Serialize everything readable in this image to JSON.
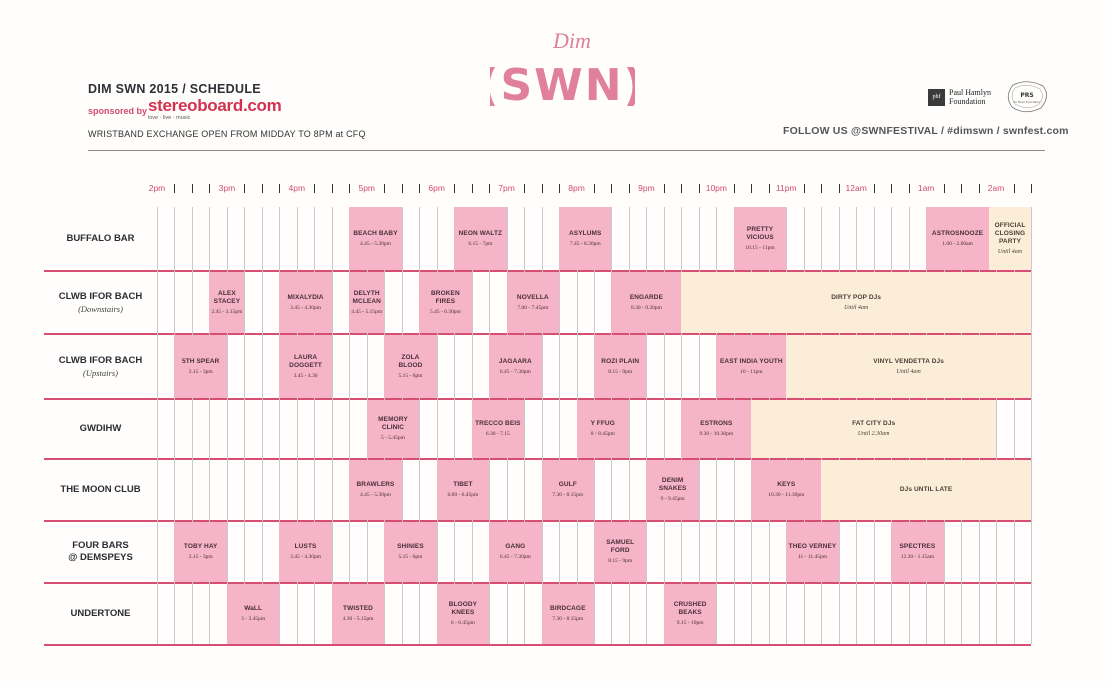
{
  "header": {
    "logo_top": "Dim",
    "logo_main": "(SWN)",
    "title": "DIM SWN 2015 / SCHEDULE",
    "sponsored_by": "sponsored by",
    "sponsor_name": "stereoboard.com",
    "sponsor_tagline": "love · live · music",
    "wristband": "WRISTBAND EXCHANGE OPEN FROM MIDDAY TO 8PM at CFQ",
    "follow": "FOLLOW US @SWNFESTIVAL / #dimswn / swnfest.com",
    "phf_mark": "phf",
    "phf_line1": "Paul Hamlyn",
    "phf_line2": "Foundation",
    "prs_mark": "PRS",
    "prs_sub": "for Music Foundation"
  },
  "colors": {
    "accent": "#d24b6e",
    "slot": "#f5b4c8",
    "dj": "#fcedd9",
    "rule": "#d64f72"
  },
  "hours": [
    "2pm",
    "3pm",
    "4pm",
    "5pm",
    "6pm",
    "7pm",
    "8pm",
    "9pm",
    "10pm",
    "11pm",
    "12am",
    "1am",
    "2am"
  ],
  "venues": [
    {
      "name": "BUFFALO BAR",
      "sub": ""
    },
    {
      "name": "CLWB IFOR BACH",
      "sub": "(Downstairs)"
    },
    {
      "name": "CLWB IFOR BACH",
      "sub": "(Upstairs)"
    },
    {
      "name": "GWDIHW",
      "sub": ""
    },
    {
      "name": "THE MOON CLUB",
      "sub": ""
    },
    {
      "name": "FOUR BARS\n@ DEMSPEYS",
      "sub": ""
    },
    {
      "name": "UNDERTONE",
      "sub": ""
    }
  ],
  "slots": [
    {
      "row": 0,
      "name": "BEACH BABY",
      "time": "4.45 - 5.30pm",
      "start": 16.75,
      "end": 17.5,
      "dj": false
    },
    {
      "row": 0,
      "name": "NEON WALTZ",
      "time": "6.15 - 7pm",
      "start": 18.25,
      "end": 19.0,
      "dj": false
    },
    {
      "row": 0,
      "name": "ASYLUMS",
      "time": "7.45 - 8.30pm",
      "start": 19.75,
      "end": 20.5,
      "dj": false
    },
    {
      "row": 0,
      "name": "PRETTY\nVICIOUS",
      "time": "10.15 - 11pm",
      "start": 22.25,
      "end": 23.0,
      "dj": false
    },
    {
      "row": 0,
      "name": "ASTROSNOOZE",
      "time": "1.00 - 2.00am",
      "start": 25.0,
      "end": 25.9,
      "dj": false
    },
    {
      "row": 0,
      "name": "OFFICIAL\nCLOSING PARTY",
      "time": "Until 4am",
      "start": 25.9,
      "end": 26.5,
      "dj": true
    },
    {
      "row": 1,
      "name": "ALEX\nSTACEY",
      "time": "2.45 - 3.15pm",
      "start": 14.75,
      "end": 15.25,
      "dj": false
    },
    {
      "row": 1,
      "name": "MIXALYDIA",
      "time": "3.45 - 4.30pm",
      "start": 15.75,
      "end": 16.5,
      "dj": false
    },
    {
      "row": 1,
      "name": "DELYTH\nMCLEAN",
      "time": "4.45 - 5.15pm",
      "start": 16.75,
      "end": 17.25,
      "dj": false
    },
    {
      "row": 1,
      "name": "BROKEN FIRES",
      "time": "5.45 - 6.30pm",
      "start": 17.75,
      "end": 18.5,
      "dj": false
    },
    {
      "row": 1,
      "name": "NOVELLA",
      "time": "7.00 - 7.45pm",
      "start": 19.0,
      "end": 19.75,
      "dj": false
    },
    {
      "row": 1,
      "name": "ENGARDE",
      "time": "8.30 - 9.30pm",
      "start": 20.5,
      "end": 21.5,
      "dj": false
    },
    {
      "row": 1,
      "name": "DIRTY POP DJs",
      "time": "Until 4am",
      "start": 21.5,
      "end": 26.5,
      "dj": true
    },
    {
      "row": 2,
      "name": "5TH SPEAR",
      "time": "2.15 - 3pm",
      "start": 14.25,
      "end": 15.0,
      "dj": false
    },
    {
      "row": 2,
      "name": "LAURA\nDOGGETT",
      "time": "3.45 - 4.30",
      "start": 15.75,
      "end": 16.5,
      "dj": false
    },
    {
      "row": 2,
      "name": "ZOLA\nBLOOD",
      "time": "5.15 - 6pm",
      "start": 17.25,
      "end": 18.0,
      "dj": false
    },
    {
      "row": 2,
      "name": "JAGAARA",
      "time": "6.45 - 7.30pm",
      "start": 18.75,
      "end": 19.5,
      "dj": false
    },
    {
      "row": 2,
      "name": "ROZI PLAIN",
      "time": "8.15 - 9pm",
      "start": 20.25,
      "end": 21.0,
      "dj": false
    },
    {
      "row": 2,
      "name": "EAST INDIA YOUTH",
      "time": "10 - 11pm",
      "start": 22.0,
      "end": 23.0,
      "dj": false
    },
    {
      "row": 2,
      "name": "VINYL VENDETTA DJs",
      "time": "Until 4am",
      "start": 23.0,
      "end": 26.5,
      "dj": true
    },
    {
      "row": 3,
      "name": "MEMORY\nCLINIC",
      "time": "5 - 5.45pm",
      "start": 17.0,
      "end": 17.75,
      "dj": false
    },
    {
      "row": 3,
      "name": "TRECCO BEIS",
      "time": "6.30 - 7.15",
      "start": 18.5,
      "end": 19.25,
      "dj": false
    },
    {
      "row": 3,
      "name": "Y FFUG",
      "time": "8 - 8.45pm",
      "start": 20.0,
      "end": 20.75,
      "dj": false
    },
    {
      "row": 3,
      "name": "ESTRONS",
      "time": "9.30 - 10.30pm",
      "start": 21.5,
      "end": 22.5,
      "dj": false
    },
    {
      "row": 3,
      "name": "FAT CITY DJs",
      "time": "Until 2.30am",
      "start": 22.5,
      "end": 26.0,
      "dj": true
    },
    {
      "row": 4,
      "name": "BRAWLERS",
      "time": "4.45 - 5.30pm",
      "start": 16.75,
      "end": 17.5,
      "dj": false
    },
    {
      "row": 4,
      "name": "TIBET",
      "time": "6.00 - 6.45pm",
      "start": 18.0,
      "end": 18.75,
      "dj": false
    },
    {
      "row": 4,
      "name": "GULF",
      "time": "7.30 - 8.15pm",
      "start": 19.5,
      "end": 20.25,
      "dj": false
    },
    {
      "row": 4,
      "name": "DENIM\nSNAKES",
      "time": "9 - 9.45pm",
      "start": 21.0,
      "end": 21.75,
      "dj": false
    },
    {
      "row": 4,
      "name": "KEYS",
      "time": "10.30 - 11.30pm",
      "start": 22.5,
      "end": 23.5,
      "dj": false
    },
    {
      "row": 4,
      "name": "DJs UNTIL LATE",
      "time": "",
      "start": 23.5,
      "end": 26.5,
      "dj": true
    },
    {
      "row": 5,
      "name": "TOBY HAY",
      "time": "2.15 - 3pm",
      "start": 14.25,
      "end": 15.0,
      "dj": false
    },
    {
      "row": 5,
      "name": "LUSTS",
      "time": "3.45 - 4.30pm",
      "start": 15.75,
      "end": 16.5,
      "dj": false
    },
    {
      "row": 5,
      "name": "SHINIES",
      "time": "5.15 - 6pm",
      "start": 17.25,
      "end": 18.0,
      "dj": false
    },
    {
      "row": 5,
      "name": "GANG",
      "time": "6.45 - 7.30pm",
      "start": 18.75,
      "end": 19.5,
      "dj": false
    },
    {
      "row": 5,
      "name": "SAMUEL\nFORD",
      "time": "8.15 - 9pm",
      "start": 20.25,
      "end": 21.0,
      "dj": false
    },
    {
      "row": 5,
      "name": "THEO VERNEY",
      "time": "11 - 11.45pm",
      "start": 23.0,
      "end": 23.75,
      "dj": false
    },
    {
      "row": 5,
      "name": "SPECTRES",
      "time": "12.30 - 1.15am",
      "start": 24.5,
      "end": 25.25,
      "dj": false
    },
    {
      "row": 6,
      "name": "WaLL",
      "time": "3 - 3.45pm",
      "start": 15.0,
      "end": 15.75,
      "dj": false
    },
    {
      "row": 6,
      "name": "TWISTED",
      "time": "4.30 - 5.15pm",
      "start": 16.5,
      "end": 17.25,
      "dj": false
    },
    {
      "row": 6,
      "name": "BLOODY\nKNEES",
      "time": "6 - 6.45pm",
      "start": 18.0,
      "end": 18.75,
      "dj": false
    },
    {
      "row": 6,
      "name": "BIRDCAGE",
      "time": "7.30 - 8.15pm",
      "start": 19.5,
      "end": 20.25,
      "dj": false
    },
    {
      "row": 6,
      "name": "CRUSHED\nBEAKS",
      "time": "9.15 - 10pm",
      "start": 21.25,
      "end": 22.0,
      "dj": false
    }
  ]
}
